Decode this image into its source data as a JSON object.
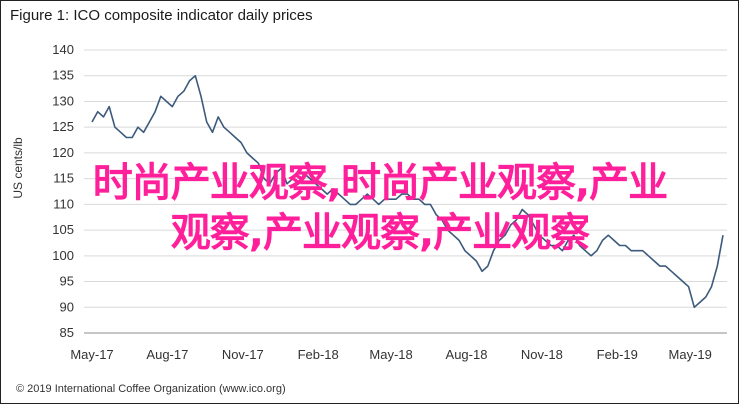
{
  "title": "Figure 1: ICO composite indicator daily prices",
  "footer": "© 2019 International Coffee Organization (www.ico.org)",
  "overlay": {
    "line1": "时尚产业观察,时尚产业观察,产业",
    "line2": "观察,产业观察,产业观察"
  },
  "chart_data": {
    "type": "line",
    "title": "Figure 1: ICO composite indicator daily prices",
    "xlabel": "",
    "ylabel": "US cents/lb",
    "ylim": [
      85,
      140
    ],
    "yticks": [
      85,
      90,
      95,
      100,
      105,
      110,
      115,
      120,
      125,
      130,
      135,
      140
    ],
    "xticks": [
      "May-17",
      "Aug-17",
      "Nov-17",
      "Feb-18",
      "May-18",
      "Aug-18",
      "Nov-18",
      "Feb-19",
      "May-19"
    ],
    "grid": true,
    "colors": {
      "line": "#3c5a7c",
      "grid": "#d9d9d9"
    },
    "series": [
      {
        "name": "",
        "x": [
          "2017-05-01",
          "2017-05-08",
          "2017-05-15",
          "2017-05-22",
          "2017-05-29",
          "2017-06-05",
          "2017-06-12",
          "2017-06-19",
          "2017-06-26",
          "2017-07-03",
          "2017-07-10",
          "2017-07-17",
          "2017-07-24",
          "2017-07-31",
          "2017-08-07",
          "2017-08-14",
          "2017-08-21",
          "2017-08-28",
          "2017-09-04",
          "2017-09-11",
          "2017-09-18",
          "2017-09-25",
          "2017-10-02",
          "2017-10-09",
          "2017-10-16",
          "2017-10-23",
          "2017-10-30",
          "2017-11-06",
          "2017-11-13",
          "2017-11-20",
          "2017-11-27",
          "2017-12-04",
          "2017-12-11",
          "2017-12-18",
          "2017-12-25",
          "2018-01-01",
          "2018-01-08",
          "2018-01-15",
          "2018-01-22",
          "2018-01-29",
          "2018-02-05",
          "2018-02-12",
          "2018-02-19",
          "2018-02-26",
          "2018-03-05",
          "2018-03-12",
          "2018-03-19",
          "2018-03-26",
          "2018-04-02",
          "2018-04-09",
          "2018-04-16",
          "2018-04-23",
          "2018-04-30",
          "2018-05-07",
          "2018-05-14",
          "2018-05-21",
          "2018-05-28",
          "2018-06-04",
          "2018-06-11",
          "2018-06-18",
          "2018-06-25",
          "2018-07-02",
          "2018-07-09",
          "2018-07-16",
          "2018-07-23",
          "2018-07-30",
          "2018-08-06",
          "2018-08-13",
          "2018-08-20",
          "2018-08-27",
          "2018-09-03",
          "2018-09-10",
          "2018-09-17",
          "2018-09-24",
          "2018-10-01",
          "2018-10-08",
          "2018-10-15",
          "2018-10-22",
          "2018-10-29",
          "2018-11-05",
          "2018-11-12",
          "2018-11-19",
          "2018-11-26",
          "2018-12-03",
          "2018-12-10",
          "2018-12-17",
          "2018-12-24",
          "2018-12-31",
          "2019-01-07",
          "2019-01-14",
          "2019-01-21",
          "2019-01-28",
          "2019-02-04",
          "2019-02-11",
          "2019-02-18",
          "2019-02-25",
          "2019-03-04",
          "2019-03-11",
          "2019-03-18",
          "2019-03-25",
          "2019-04-01",
          "2019-04-08",
          "2019-04-15",
          "2019-04-22",
          "2019-04-29",
          "2019-05-06",
          "2019-05-13",
          "2019-05-20",
          "2019-05-27",
          "2019-06-03",
          "2019-06-10"
        ],
        "values": [
          126,
          128,
          127,
          129,
          125,
          124,
          123,
          123,
          125,
          124,
          126,
          128,
          131,
          130,
          129,
          131,
          132,
          134,
          135,
          131,
          126,
          124,
          127,
          125,
          124,
          123,
          122,
          120,
          119,
          118,
          115,
          114,
          116,
          117,
          114,
          115,
          114,
          116,
          115,
          114,
          113,
          112,
          113,
          112,
          111,
          110,
          110,
          111,
          112,
          111,
          110,
          111,
          111,
          111,
          112,
          112,
          111,
          111,
          110,
          110,
          108,
          107,
          105,
          104,
          103,
          101,
          100,
          99,
          97,
          98,
          101,
          103,
          104,
          106,
          107,
          109,
          108,
          106,
          104,
          103,
          102,
          102,
          101,
          103,
          104,
          102,
          101,
          100,
          101,
          103,
          104,
          103,
          102,
          102,
          101,
          101,
          101,
          100,
          99,
          98,
          98,
          97,
          96,
          95,
          94,
          90,
          91,
          92,
          94,
          98,
          104
        ]
      }
    ]
  }
}
